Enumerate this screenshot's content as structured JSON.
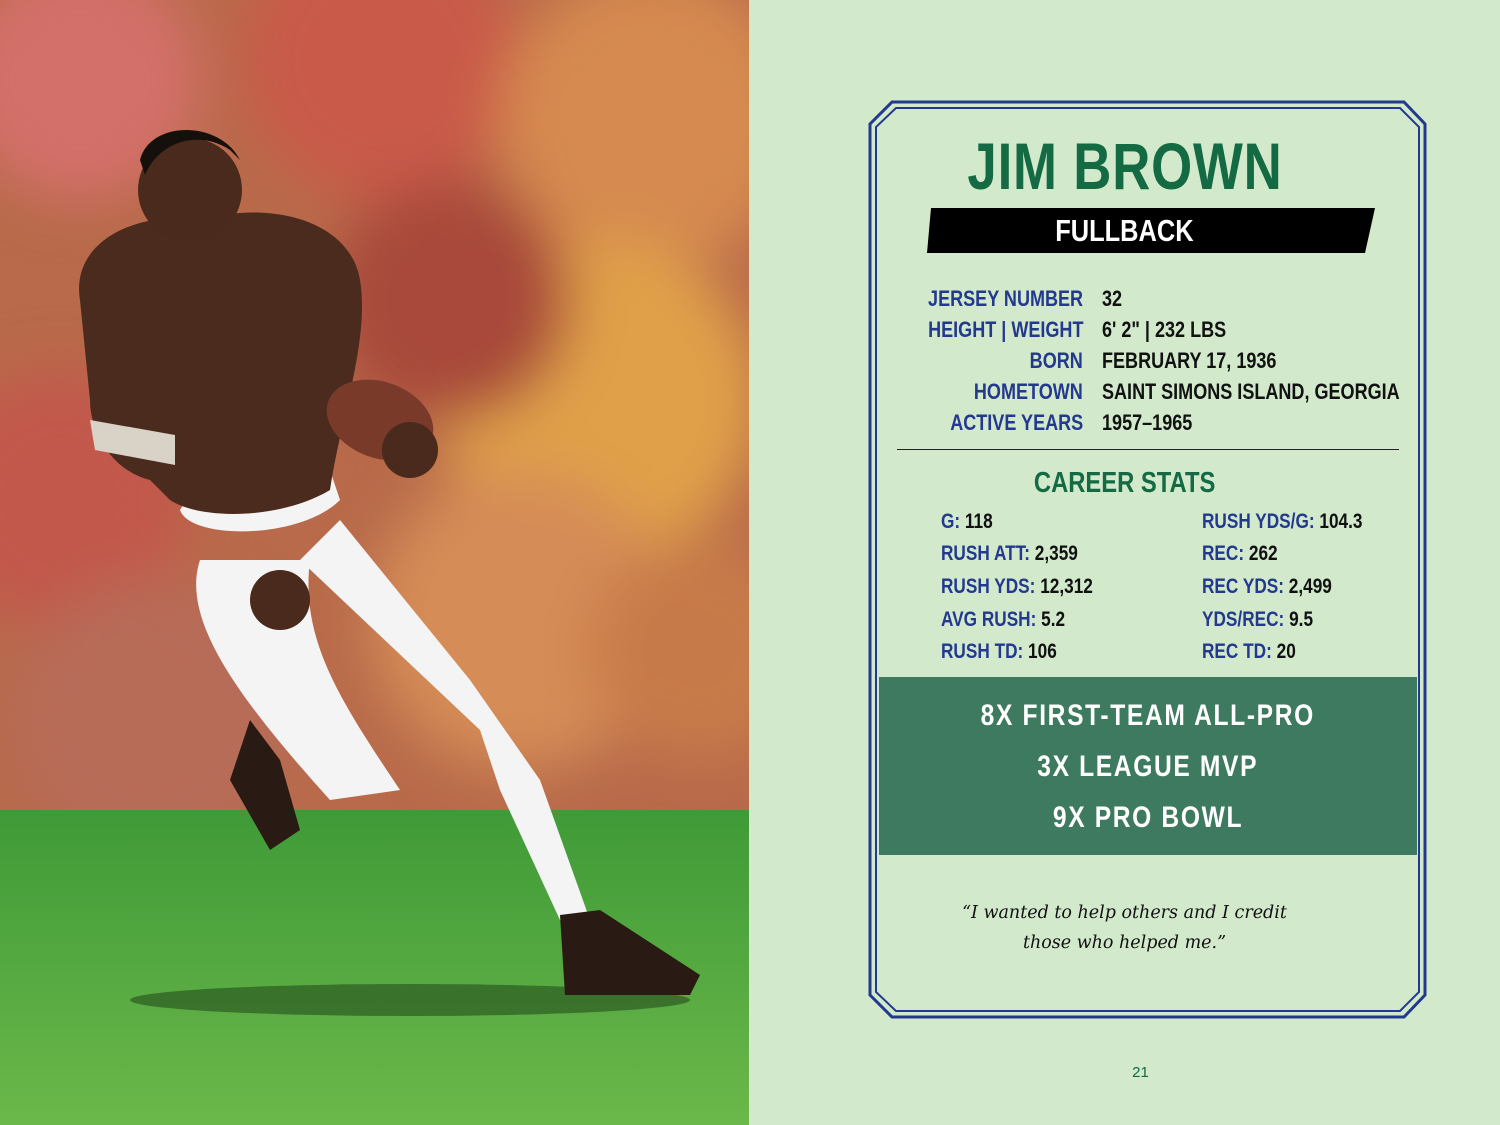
{
  "card": {
    "name": "JIM BROWN",
    "position": "FULLBACK",
    "info": [
      {
        "label": "JERSEY NUMBER",
        "value": "32"
      },
      {
        "label": "HEIGHT | WEIGHT",
        "value": "6' 2\" |  232 LBS"
      },
      {
        "label": "BORN",
        "value": "FEBRUARY 17, 1936"
      },
      {
        "label": "HOMETOWN",
        "value": "SAINT SIMONS ISLAND, GEORGIA"
      },
      {
        "label": "ACTIVE YEARS",
        "value": "1957–1965"
      }
    ],
    "stats_title": "CAREER STATS",
    "stats_left": [
      {
        "k": "G:",
        "v": " 118"
      },
      {
        "k": "RUSH ATT:",
        "v": " 2,359"
      },
      {
        "k": "RUSH YDS:",
        "v": " 12,312"
      },
      {
        "k": "AVG RUSH:",
        "v": " 5.2"
      },
      {
        "k": "RUSH TD:",
        "v": " 106"
      }
    ],
    "stats_right": [
      {
        "k": "RUSH YDS/G:",
        "v": " 104.3"
      },
      {
        "k": "REC:",
        "v": " 262"
      },
      {
        "k": "REC YDS:",
        "v": " 2,499"
      },
      {
        "k": "YDS/REC:",
        "v": " 9.5"
      },
      {
        "k": "REC TD:",
        "v": " 20"
      }
    ],
    "honors": [
      "8X FIRST-TEAM ALL-PRO",
      "3X LEAGUE MVP",
      "9X PRO BOWL"
    ],
    "quote_line1": "“I wanted to help others and I credit",
    "quote_line2": "those who helped me.”"
  },
  "page_number": "21",
  "colors": {
    "page_bg": "#d2e9cc",
    "title_green": "#136a43",
    "label_blue": "#23398e",
    "band_green": "#3e7a5f",
    "frame_blue": "#23398e"
  }
}
